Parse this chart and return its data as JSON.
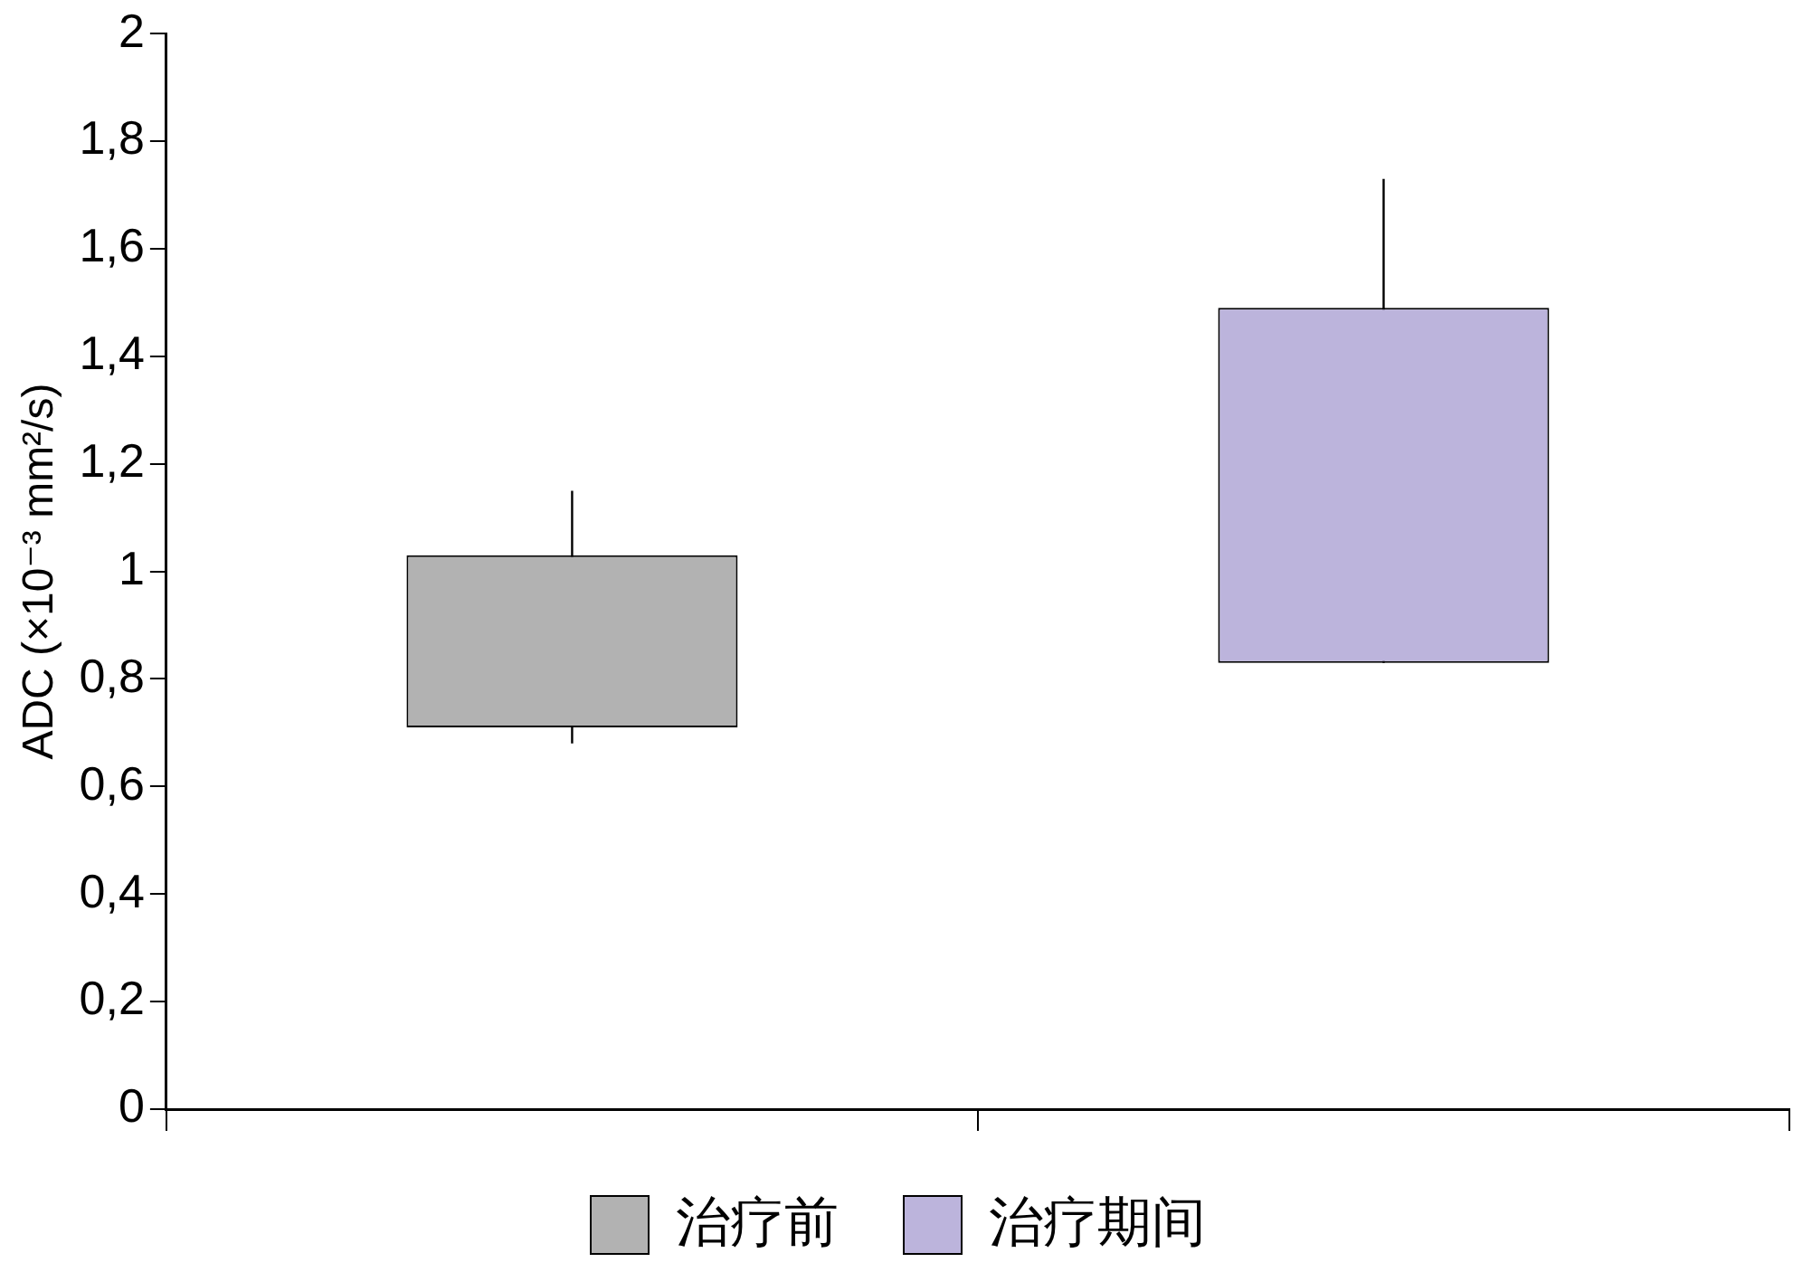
{
  "chart_data": {
    "type": "bar",
    "ylabel": "ADC (×10⁻³ mm²/s)",
    "categories": [
      null,
      null
    ],
    "series": [
      {
        "name": "治疗前",
        "color": "#b2b2b2",
        "values": [
          0.32,
          null
        ],
        "base": [
          0.71,
          null
        ],
        "errors": [
          [
            0.68,
            1.15
          ],
          null
        ]
      },
      {
        "name": "治疗期间",
        "color": "#bcb4dc",
        "values": [
          null,
          0.66
        ],
        "base": [
          null,
          0.83
        ],
        "errors": [
          null,
          [
            0.83,
            1.73
          ]
        ]
      }
    ],
    "ylim": [
      0,
      2
    ],
    "yticks": [
      0,
      {
        "value": 0.2,
        "label": "0,2"
      },
      {
        "value": 0.4,
        "label": "0,4"
      },
      {
        "value": 0.6,
        "label": "0,6"
      },
      {
        "value": 0.8,
        "label": "0,8"
      },
      1,
      {
        "value": 1.2,
        "label": "1,2"
      },
      {
        "value": 1.4,
        "label": "1,4"
      },
      {
        "value": 1.6,
        "label": "1,6"
      },
      {
        "value": 1.8,
        "label": "1,8"
      },
      2
    ],
    "grid": false,
    "legend": "bottom",
    "tick_labels": "y"
  }
}
